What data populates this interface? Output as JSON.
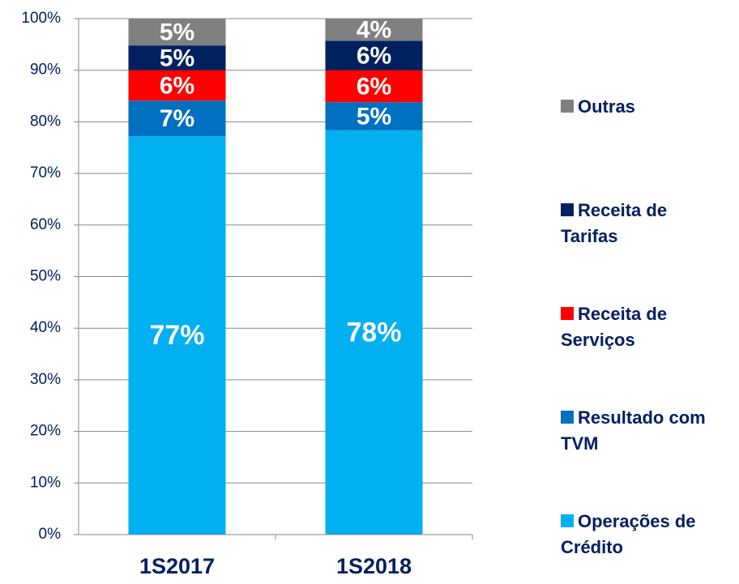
{
  "chart_data": {
    "type": "stacked_bar",
    "categories": [
      "1S2017",
      "1S2018"
    ],
    "series": [
      {
        "name": "Operações de Crédito",
        "color": "#00b0f0",
        "values": [
          77.2,
          78.4
        ],
        "value_labels": [
          "77%",
          "78%"
        ]
      },
      {
        "name": "Resultado com TVM",
        "color": "#0070c0",
        "values": [
          6.9,
          5.4
        ],
        "value_labels": [
          "7%",
          "5%"
        ]
      },
      {
        "name": "Receita de Serviços",
        "color": "#ff0000",
        "values": [
          5.9,
          6.2
        ],
        "value_labels": [
          "6%",
          "6%"
        ]
      },
      {
        "name": "Receita de Tarifas",
        "color": "#002060",
        "values": [
          4.8,
          5.7
        ],
        "value_labels": [
          "5%",
          "6%"
        ]
      },
      {
        "name": "Outras",
        "color": "#808080",
        "values": [
          5.2,
          4.3
        ],
        "value_labels": [
          "5%",
          "4%"
        ]
      }
    ],
    "ylim": [
      0,
      100
    ],
    "yticks": [
      {
        "value": 0,
        "label": "0%"
      },
      {
        "value": 10,
        "label": "10%"
      },
      {
        "value": 20,
        "label": "20%"
      },
      {
        "value": 30,
        "label": "30%"
      },
      {
        "value": 40,
        "label": "40%"
      },
      {
        "value": 50,
        "label": "50%"
      },
      {
        "value": 60,
        "label": "60%"
      },
      {
        "value": 70,
        "label": "70%"
      },
      {
        "value": 80,
        "label": "80%"
      },
      {
        "value": 90,
        "label": "90%"
      },
      {
        "value": 100,
        "label": "100%"
      }
    ],
    "grid": true,
    "legend": "right"
  }
}
